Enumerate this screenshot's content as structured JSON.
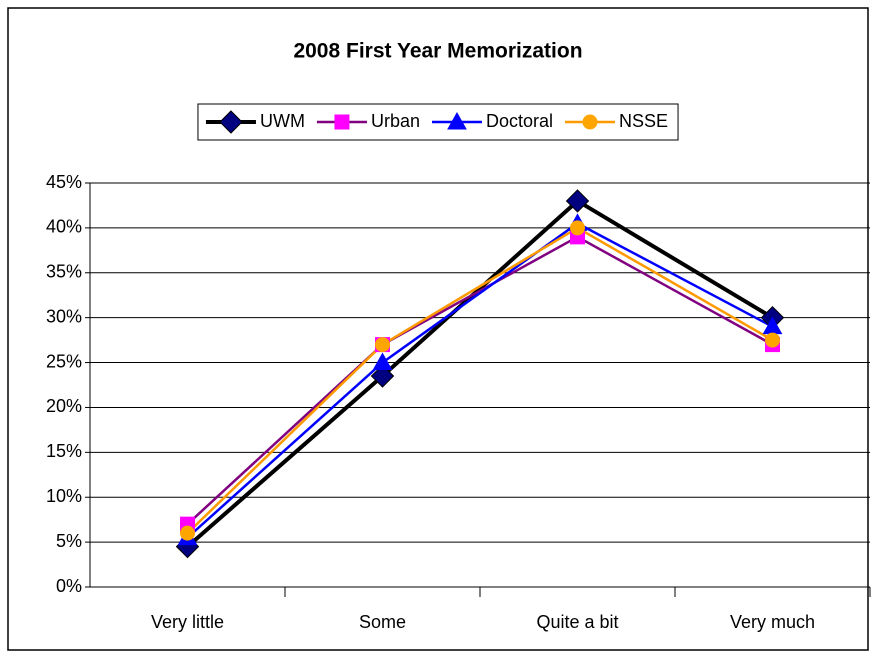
{
  "chart_data": {
    "type": "line",
    "title": "2008 First Year Memorization",
    "categories": [
      "Very little",
      "Some",
      "Quite a bit",
      "Very much"
    ],
    "series": [
      {
        "name": "UWM",
        "color": "#000000",
        "marker_color": "#000080",
        "marker": "diamond",
        "values": [
          4.5,
          23.5,
          43,
          30
        ]
      },
      {
        "name": "Urban",
        "color": "#800080",
        "marker_color": "#ff00ff",
        "marker": "square",
        "values": [
          7,
          27,
          39,
          27
        ]
      },
      {
        "name": "Doctoral",
        "color": "#0000ff",
        "marker_color": "#0000ff",
        "marker": "triangle",
        "values": [
          5.5,
          25,
          40.5,
          29
        ]
      },
      {
        "name": "NSSE",
        "color": "#ff9900",
        "marker_color": "#ffa500",
        "marker": "circle",
        "values": [
          6,
          27,
          40,
          27.5
        ]
      }
    ],
    "ylim": [
      0,
      45
    ],
    "yticks": [
      {
        "value": 0,
        "label": "0%"
      },
      {
        "value": 5,
        "label": "5%"
      },
      {
        "value": 10,
        "label": "10%"
      },
      {
        "value": 15,
        "label": "15%"
      },
      {
        "value": 20,
        "label": "20%"
      },
      {
        "value": 25,
        "label": "25%"
      },
      {
        "value": 30,
        "label": "30%"
      },
      {
        "value": 35,
        "label": "35%"
      },
      {
        "value": 40,
        "label": "40%"
      },
      {
        "value": 45,
        "label": "45%"
      }
    ],
    "grid": true,
    "legend": "top"
  }
}
